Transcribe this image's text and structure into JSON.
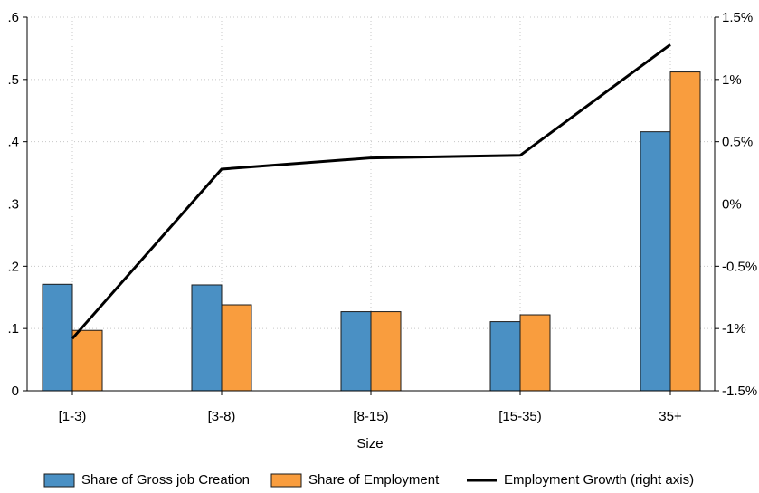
{
  "chart_data": {
    "type": "bar",
    "categories": [
      "[1-3)",
      "[3-8)",
      "[8-15)",
      "[15-35)",
      "35+"
    ],
    "xlabel": "Size",
    "ylabel": "",
    "ylim": [
      0,
      0.6
    ],
    "y_ticks": [
      {
        "value": 0,
        "label": "0"
      },
      {
        "value": 0.1,
        "label": ".1"
      },
      {
        "value": 0.2,
        "label": ".2"
      },
      {
        "value": 0.3,
        "label": ".3"
      },
      {
        "value": 0.4,
        "label": ".4"
      },
      {
        "value": 0.5,
        "label": ".5"
      },
      {
        "value": 0.6,
        "label": ".6"
      }
    ],
    "y2lim": [
      -1.5,
      1.5
    ],
    "y2_ticks": [
      {
        "value": -1.5,
        "label": "-1.5%"
      },
      {
        "value": -1.0,
        "label": "-1%"
      },
      {
        "value": -0.5,
        "label": "-0.5%"
      },
      {
        "value": 0,
        "label": "0%"
      },
      {
        "value": 0.5,
        "label": "0.5%"
      },
      {
        "value": 1.0,
        "label": "1%"
      },
      {
        "value": 1.5,
        "label": "1.5%"
      }
    ],
    "grid": true,
    "legend_position": "bottom",
    "series": [
      {
        "name": "Share of Gross job Creation",
        "type": "bar",
        "axis": "left",
        "color": "#4a90c4",
        "values": [
          0.171,
          0.17,
          0.127,
          0.111,
          0.416
        ]
      },
      {
        "name": "Share of Employment",
        "type": "bar",
        "axis": "left",
        "color": "#f99d3e",
        "values": [
          0.097,
          0.138,
          0.127,
          0.122,
          0.512
        ]
      },
      {
        "name": "Employment Growth (right axis)",
        "type": "line",
        "axis": "right",
        "color": "#000000",
        "values": [
          -1.08,
          0.28,
          0.37,
          0.39,
          1.28
        ]
      }
    ]
  }
}
